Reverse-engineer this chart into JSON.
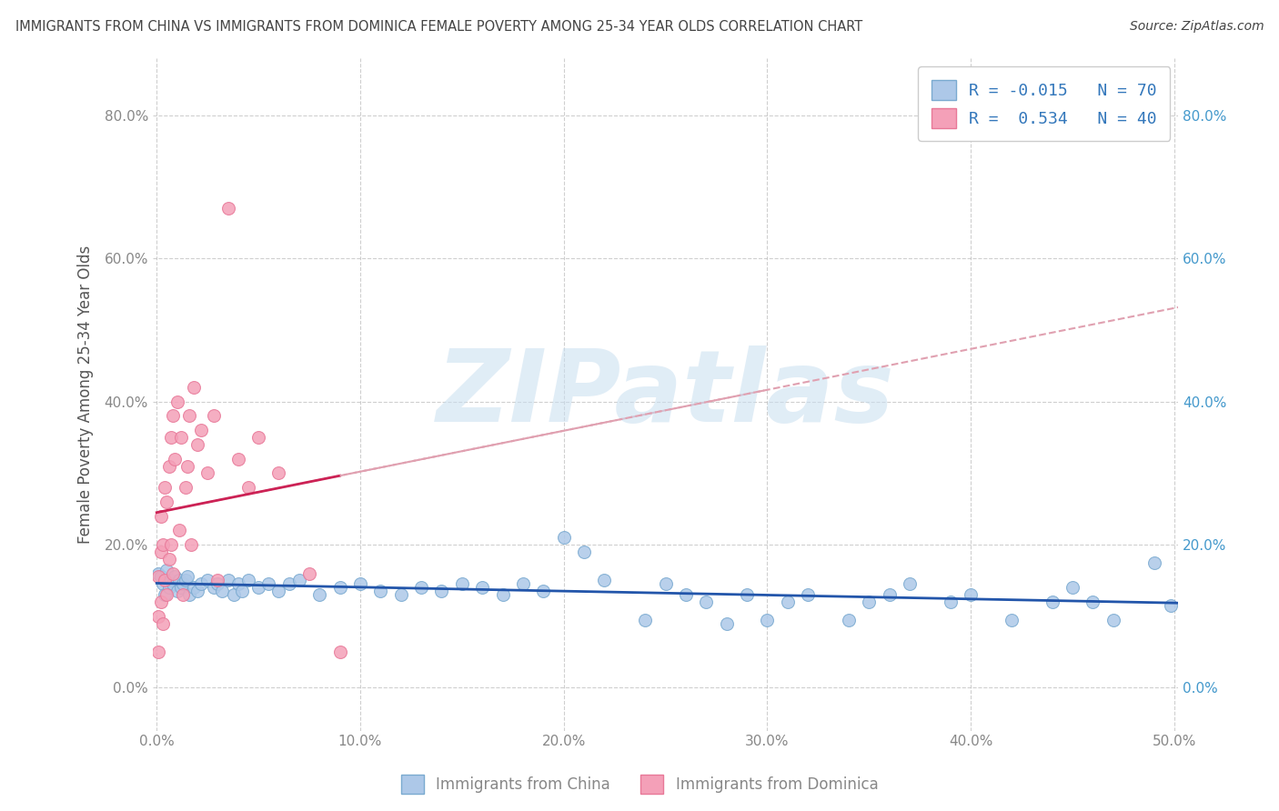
{
  "title": "IMMIGRANTS FROM CHINA VS IMMIGRANTS FROM DOMINICA FEMALE POVERTY AMONG 25-34 YEAR OLDS CORRELATION CHART",
  "source": "Source: ZipAtlas.com",
  "xlabel": "",
  "ylabel": "Female Poverty Among 25-34 Year Olds",
  "xlim": [
    -0.002,
    0.502
  ],
  "ylim": [
    -0.06,
    0.88
  ],
  "xticks": [
    0.0,
    0.1,
    0.2,
    0.3,
    0.4,
    0.5
  ],
  "xtick_labels": [
    "0.0%",
    "10.0%",
    "20.0%",
    "30.0%",
    "40.0%",
    "50.0%"
  ],
  "yticks": [
    0.0,
    0.2,
    0.4,
    0.6,
    0.8
  ],
  "ytick_labels": [
    "0.0%",
    "20.0%",
    "40.0%",
    "60.0%",
    "80.0%"
  ],
  "china_color": "#adc8e8",
  "dominica_color": "#f4a0b8",
  "china_edge_color": "#7aaad0",
  "dominica_edge_color": "#e87898",
  "china_line_color": "#2255aa",
  "dominica_line_color": "#cc2255",
  "dominica_dash_color": "#e0a0b0",
  "R_china": -0.015,
  "N_china": 70,
  "R_dominica": 0.534,
  "N_dominica": 40,
  "legend_label_china": "Immigrants from China",
  "legend_label_dominica": "Immigrants from Dominica",
  "watermark": "ZIPatlas",
  "watermark_color": "#c8dff0",
  "background_color": "#ffffff",
  "grid_color": "#bbbbbb",
  "title_color": "#444444",
  "axis_label_color": "#555555",
  "tick_color": "#888888",
  "right_tick_color": "#4499cc",
  "china_x": [
    0.001,
    0.002,
    0.003,
    0.004,
    0.005,
    0.006,
    0.007,
    0.008,
    0.009,
    0.01,
    0.011,
    0.012,
    0.013,
    0.014,
    0.015,
    0.016,
    0.018,
    0.02,
    0.022,
    0.025,
    0.028,
    0.03,
    0.032,
    0.035,
    0.038,
    0.04,
    0.042,
    0.045,
    0.05,
    0.055,
    0.06,
    0.065,
    0.07,
    0.08,
    0.09,
    0.1,
    0.11,
    0.12,
    0.13,
    0.14,
    0.15,
    0.16,
    0.17,
    0.18,
    0.19,
    0.2,
    0.21,
    0.22,
    0.24,
    0.25,
    0.26,
    0.27,
    0.28,
    0.29,
    0.3,
    0.31,
    0.32,
    0.34,
    0.35,
    0.36,
    0.37,
    0.39,
    0.4,
    0.42,
    0.44,
    0.45,
    0.46,
    0.47,
    0.49,
    0.498
  ],
  "china_y": [
    0.16,
    0.155,
    0.145,
    0.13,
    0.165,
    0.14,
    0.15,
    0.145,
    0.155,
    0.135,
    0.15,
    0.14,
    0.145,
    0.15,
    0.155,
    0.13,
    0.14,
    0.135,
    0.145,
    0.15,
    0.14,
    0.145,
    0.135,
    0.15,
    0.13,
    0.145,
    0.135,
    0.15,
    0.14,
    0.145,
    0.135,
    0.145,
    0.15,
    0.13,
    0.14,
    0.145,
    0.135,
    0.13,
    0.14,
    0.135,
    0.145,
    0.14,
    0.13,
    0.145,
    0.135,
    0.21,
    0.19,
    0.15,
    0.095,
    0.145,
    0.13,
    0.12,
    0.09,
    0.13,
    0.095,
    0.12,
    0.13,
    0.095,
    0.12,
    0.13,
    0.145,
    0.12,
    0.13,
    0.095,
    0.12,
    0.14,
    0.12,
    0.095,
    0.175,
    0.115
  ],
  "dominica_x": [
    0.001,
    0.001,
    0.001,
    0.002,
    0.002,
    0.002,
    0.003,
    0.003,
    0.004,
    0.004,
    0.005,
    0.005,
    0.006,
    0.006,
    0.007,
    0.007,
    0.008,
    0.008,
    0.009,
    0.01,
    0.011,
    0.012,
    0.013,
    0.014,
    0.015,
    0.016,
    0.017,
    0.018,
    0.02,
    0.022,
    0.025,
    0.028,
    0.03,
    0.035,
    0.04,
    0.045,
    0.05,
    0.06,
    0.075,
    0.09
  ],
  "dominica_y": [
    0.05,
    0.1,
    0.155,
    0.12,
    0.19,
    0.24,
    0.09,
    0.2,
    0.15,
    0.28,
    0.13,
    0.26,
    0.18,
    0.31,
    0.2,
    0.35,
    0.16,
    0.38,
    0.32,
    0.4,
    0.22,
    0.35,
    0.13,
    0.28,
    0.31,
    0.38,
    0.2,
    0.42,
    0.34,
    0.36,
    0.3,
    0.38,
    0.15,
    0.67,
    0.32,
    0.28,
    0.35,
    0.3,
    0.16,
    0.05
  ]
}
